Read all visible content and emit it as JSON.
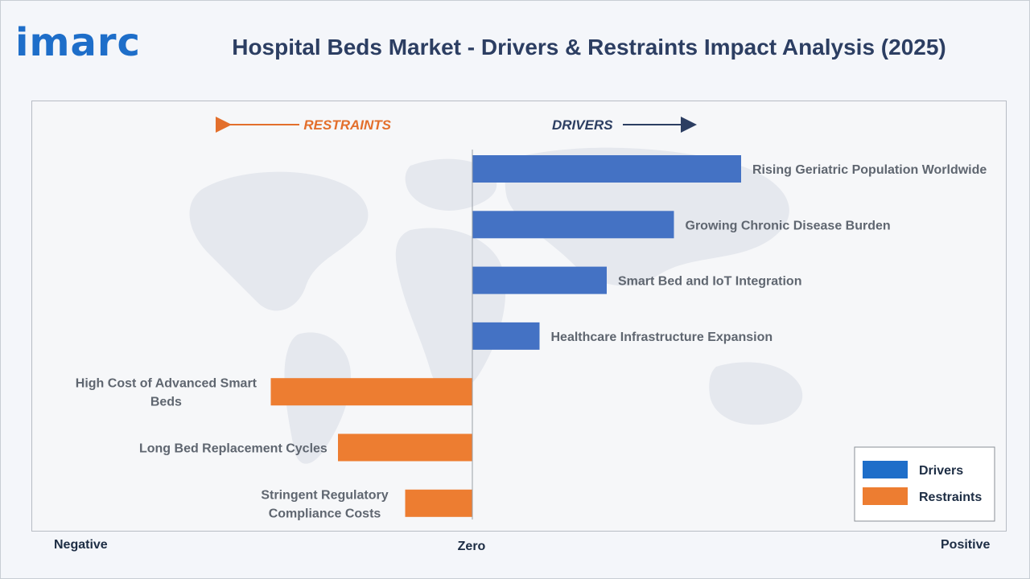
{
  "brand": {
    "logo_text": "imarc"
  },
  "chart_data": {
    "type": "bar",
    "title": "Hospital Beds Market - Drivers & Restraints Impact Analysis (2025)",
    "direction_labels": {
      "restraints": "RESTRAINTS",
      "drivers": "DRIVERS"
    },
    "axis_labels": {
      "negative": "Negative",
      "zero": "Zero",
      "positive": "Positive"
    },
    "categories": [
      "Rising Geriatric Population Worldwide",
      "Growing Chronic Disease Burden",
      "Smart Bed and IoT Integration",
      "Healthcare Infrastructure Expansion",
      "High Cost of Advanced Smart Beds",
      "Long Bed Replacement Cycles",
      "Stringent Regulatory Compliance Costs"
    ],
    "series": [
      {
        "name": "Drivers",
        "color": "#4472c4",
        "values": [
          4,
          3,
          2,
          1,
          null,
          null,
          null
        ]
      },
      {
        "name": "Restraints",
        "color": "#ed7d31",
        "values": [
          null,
          null,
          null,
          null,
          -3,
          -2,
          -1
        ]
      }
    ],
    "legend": [
      "Drivers",
      "Restraints"
    ],
    "legend_position": "bottom-right",
    "ylim": [
      -6.5,
      7.5
    ],
    "grid": false
  }
}
